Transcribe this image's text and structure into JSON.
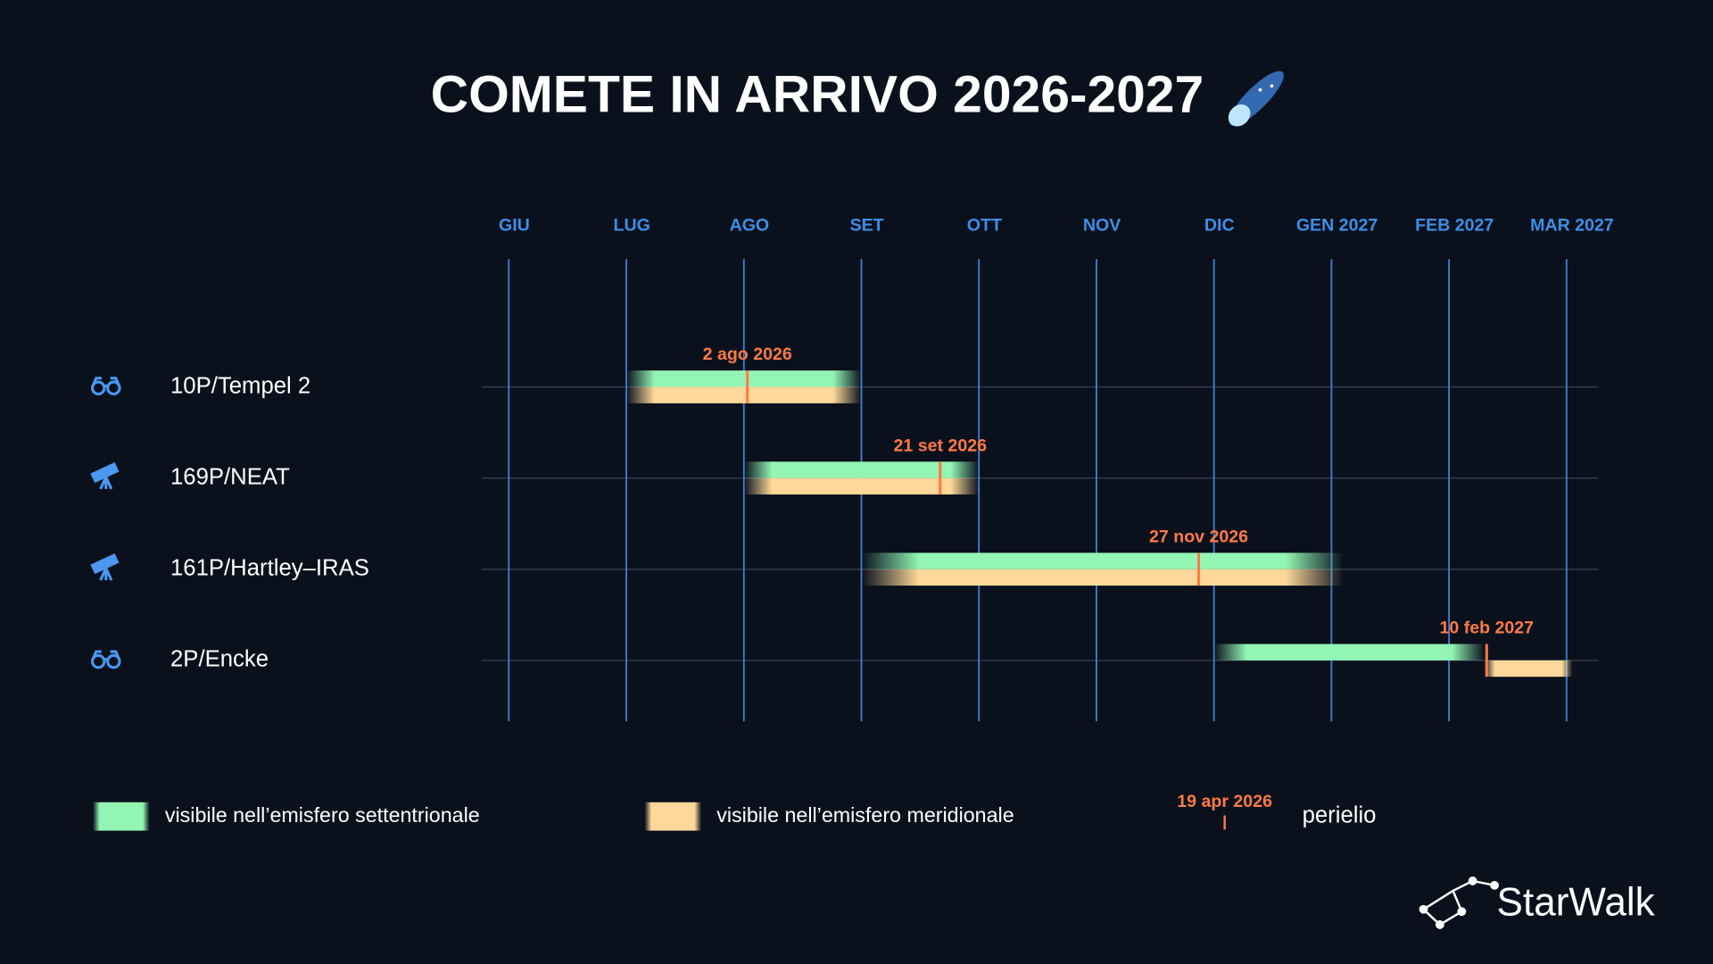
{
  "chart_data": {
    "type": "timeline",
    "title": "COMETE IN ARRIVO 2026-2027",
    "xlim": [
      -0.23,
      9.27
    ],
    "xticks": [
      {
        "value": 0,
        "label": "GIU"
      },
      {
        "value": 1,
        "label": "LUG"
      },
      {
        "value": 2,
        "label": "AGO"
      },
      {
        "value": 3,
        "label": "SET"
      },
      {
        "value": 4,
        "label": "OTT"
      },
      {
        "value": 5,
        "label": "NOV"
      },
      {
        "value": 6,
        "label": "DIC"
      },
      {
        "value": 7,
        "label": "GEN 2027"
      },
      {
        "value": 8,
        "label": "FEB 2027"
      },
      {
        "value": 9,
        "label": "MAR 2027"
      }
    ],
    "categories": [
      "10P/Tempel 2",
      "169P/NEAT",
      "161P/Hartley–IRAS",
      "2P/Encke"
    ],
    "instruments": [
      "binoculars",
      "telescope",
      "telescope",
      "binoculars"
    ],
    "series": [
      {
        "name": "visibile nell’emisfero settentrionale",
        "color": "#93f5b4",
        "ranges": [
          [
            1,
            3
          ],
          [
            2,
            4
          ],
          [
            3,
            7.1
          ],
          [
            6,
            8.3
          ]
        ]
      },
      {
        "name": "visibile nell’emisfero meridionale",
        "color": "#fdd89a",
        "ranges": [
          [
            1,
            3
          ],
          [
            2,
            4
          ],
          [
            3,
            7.1
          ],
          [
            8.3,
            9.05
          ]
        ]
      }
    ],
    "perihelion": {
      "name": "perielio",
      "color": "#ff7a45",
      "values": [
        2.03,
        3.67,
        5.87,
        8.32
      ],
      "value_labels": [
        "2 ago 2026",
        "21 set 2026",
        "27 nov 2026",
        "10 feb 2027"
      ],
      "legend_sample": "19 apr 2026"
    }
  },
  "logo": "StarWalk"
}
